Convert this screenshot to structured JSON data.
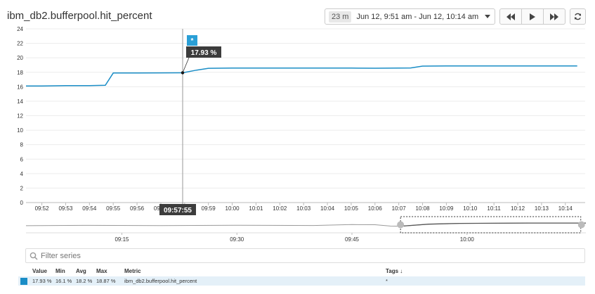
{
  "header": {
    "title": "ibm_db2.bufferpool.hit_percent",
    "duration_badge": "23 m",
    "time_range": "Jun 12, 9:51 am - Jun 12, 10:14 am"
  },
  "colors": {
    "series": "#1a8dc6",
    "navigator_line": "#555555",
    "accent": "#2a9fd6"
  },
  "icons": {
    "rewind": "rewind-icon",
    "play": "play-icon",
    "fast_forward": "fast-forward-icon",
    "refresh": "refresh-icon",
    "search": "search-icon"
  },
  "chart_data": {
    "type": "line",
    "title": "ibm_db2.bufferpool.hit_percent",
    "ylim": [
      0,
      24
    ],
    "yticks": [
      0,
      2,
      4,
      6,
      8,
      10,
      12,
      14,
      16,
      18,
      20,
      22,
      24
    ],
    "xlim": [
      "09:51:20",
      "10:14:50"
    ],
    "xticks": [
      "09:52",
      "09:53",
      "09:54",
      "09:55",
      "09:56",
      "09:57",
      "09:58",
      "09:59",
      "10:00",
      "10:01",
      "10:02",
      "10:03",
      "10:04",
      "10:05",
      "10:06",
      "10:07",
      "10:08",
      "10:09",
      "10:10",
      "10:11",
      "10:12",
      "10:13",
      "10:14"
    ],
    "grid": true,
    "series": [
      {
        "x": [
          "09:51:20",
          "09:52:00",
          "09:53:00",
          "09:54:00",
          "09:54:40",
          "09:55:00",
          "09:56:00",
          "09:57:00",
          "09:57:55",
          "09:58:30",
          "09:59:00",
          "10:00:00",
          "10:02:00",
          "10:04:00",
          "10:05:00",
          "10:06:00",
          "10:07:00",
          "10:07:30",
          "10:08:00",
          "10:09:00",
          "10:11:00",
          "10:13:00",
          "10:14:30"
        ],
        "values": [
          16.1,
          16.1,
          16.15,
          16.15,
          16.2,
          17.9,
          17.9,
          17.92,
          17.93,
          18.3,
          18.55,
          18.58,
          18.58,
          18.58,
          18.58,
          18.56,
          18.58,
          18.6,
          18.85,
          18.87,
          18.87,
          18.87,
          18.87
        ]
      }
    ],
    "hover": {
      "time": "09:57:55",
      "value": 17.93,
      "value_label": "17.93 %",
      "marker": "*"
    },
    "navigator": {
      "xticks": [
        "09:15",
        "09:30",
        "09:45",
        "10:00"
      ],
      "xlim": [
        "09:02:30",
        "10:15:30"
      ],
      "selection": [
        "09:51:20",
        "10:14:50"
      ],
      "x": [
        "09:02:30",
        "09:10",
        "09:20",
        "09:30",
        "09:40",
        "09:45",
        "09:48",
        "09:50",
        "09:51:20",
        "09:55",
        "09:59",
        "10:08",
        "10:15:30"
      ],
      "values": [
        16.5,
        16.8,
        16.6,
        16.9,
        16.7,
        17.5,
        17.4,
        16.2,
        16.1,
        17.9,
        18.58,
        18.87,
        18.87
      ]
    }
  },
  "filter": {
    "placeholder": "Filter series"
  },
  "table": {
    "columns": {
      "value": "Value",
      "min": "Min",
      "avg": "Avg",
      "max": "Max",
      "metric": "Metric",
      "tags": "Tags ↓"
    },
    "rows": [
      {
        "value": "17.93 %",
        "min": "16.1 %",
        "avg": "18.2 %",
        "max": "18.87 %",
        "metric": "ibm_db2.bufferpool.hit_percent",
        "tags": "*"
      }
    ]
  }
}
